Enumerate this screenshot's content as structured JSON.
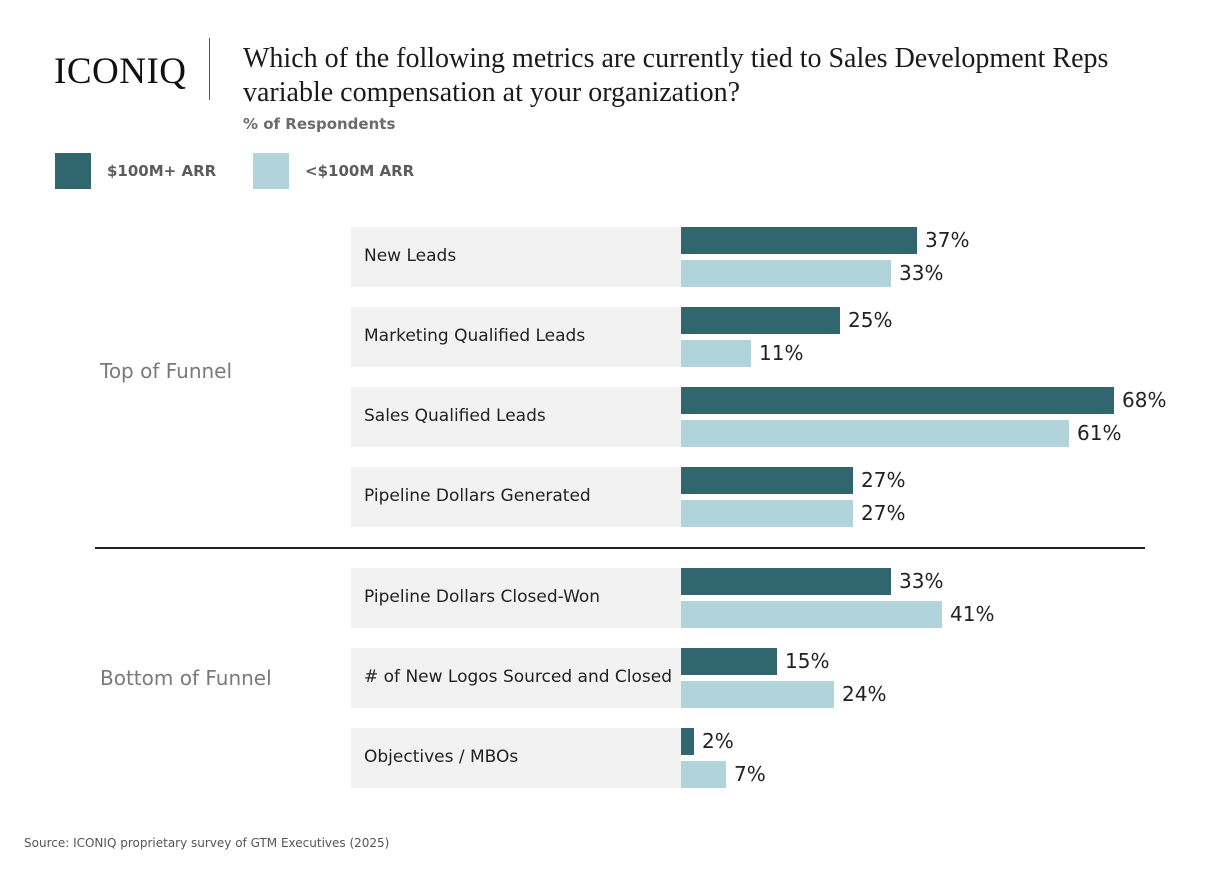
{
  "header": {
    "logo": "ICONIQ",
    "title": "Which of the following metrics are currently tied to Sales Development Reps variable compensation at your organization?",
    "subtitle": "% of Respondents"
  },
  "colors": {
    "series_large": "#31666f",
    "series_small": "#b0d4da",
    "row_background": "#f2f2f2"
  },
  "footer": {
    "source": "Source: ICONIQ proprietary survey of GTM Executives (2025)"
  },
  "chart_data": {
    "type": "bar",
    "orientation": "horizontal",
    "title": "Which of the following metrics are currently tied to Sales Development Reps variable compensation at your organization?",
    "ylabel": "% of Respondents",
    "legend_placement": "top-left",
    "groups": [
      {
        "name": "Top of Funnel",
        "categories": [
          "New Leads",
          "Marketing Qualified Leads",
          "Sales Qualified Leads",
          "Pipeline Dollars Generated"
        ]
      },
      {
        "name": "Bottom of Funnel",
        "categories": [
          "Pipeline Dollars Closed-Won",
          "# of New Logos Sourced and Closed",
          "Objectives / MBOs"
        ]
      }
    ],
    "categories": [
      "New Leads",
      "Marketing Qualified Leads",
      "Sales Qualified Leads",
      "Pipeline Dollars Generated",
      "Pipeline Dollars Closed-Won",
      "# of New Logos Sourced and Closed",
      "Objectives / MBOs"
    ],
    "series": [
      {
        "name": "$100M+ ARR",
        "color": "#31666f",
        "values": [
          37,
          25,
          68,
          27,
          33,
          15,
          2
        ]
      },
      {
        "name": "<$100M ARR",
        "color": "#b0d4da",
        "values": [
          33,
          11,
          61,
          27,
          41,
          24,
          7
        ]
      }
    ],
    "value_suffix": "%",
    "xlim": [
      0,
      68
    ],
    "grid": false
  }
}
